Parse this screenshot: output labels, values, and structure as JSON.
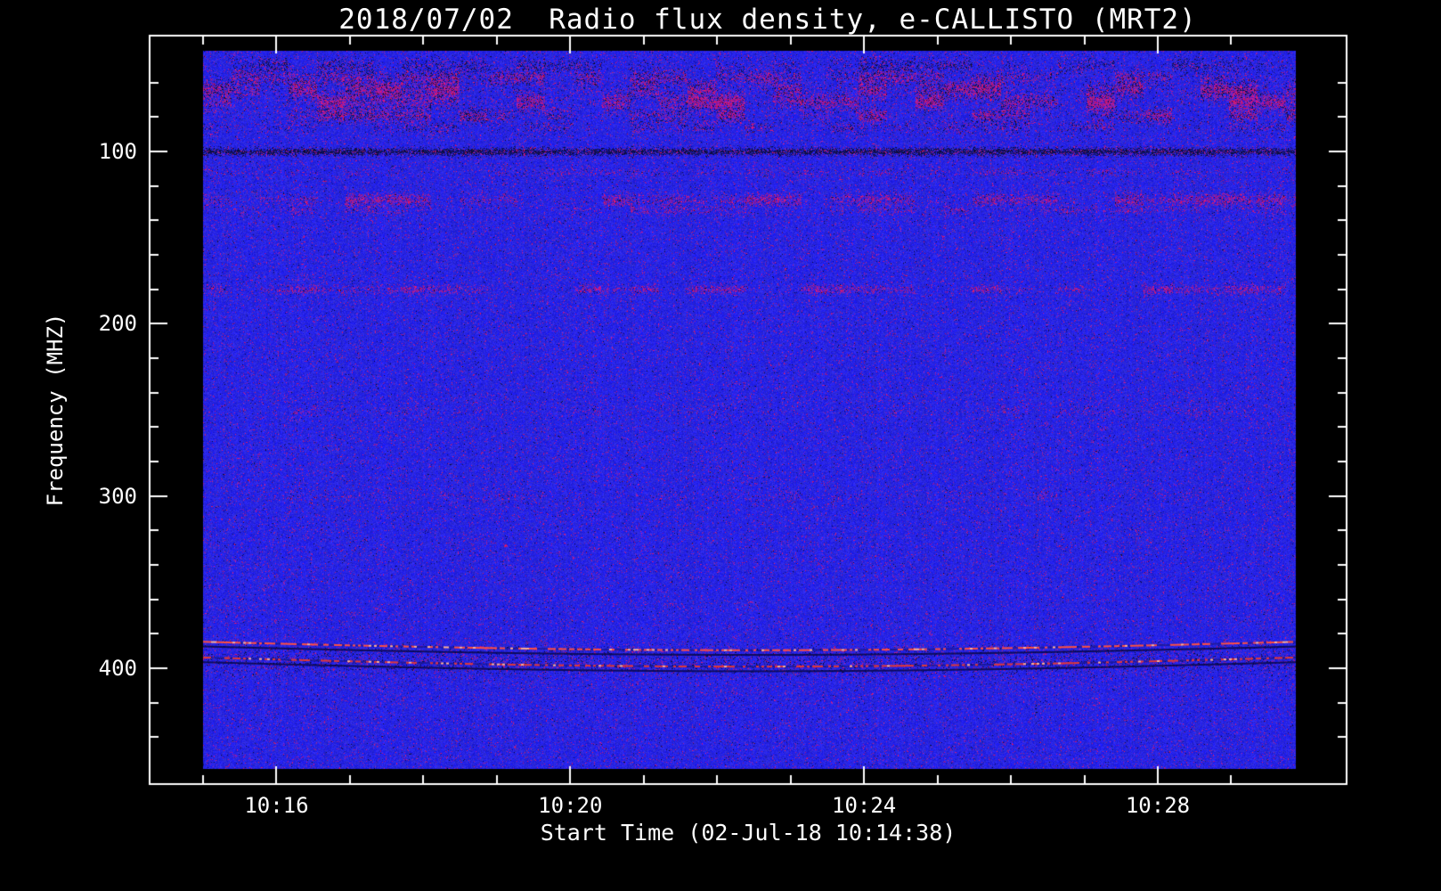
{
  "page": {
    "background_color": "#000000",
    "text_color": "#ffffff"
  },
  "chart_data": {
    "type": "heatmap",
    "title": "2018/07/02  Radio flux density, e-CALLISTO (MRT2)",
    "xlabel": "Start Time (02-Jul-18 10:14:38)",
    "ylabel": "Frequency (MHZ)",
    "date": "2018/07/02",
    "instrument": "e-CALLISTO (MRT2)",
    "start_time": "10:14:38",
    "x_tick_labels": [
      "10:16",
      "10:20",
      "10:24",
      "10:28"
    ],
    "x_major_minutes": [
      16,
      20,
      24,
      28
    ],
    "x_minor_step_minutes": 1,
    "x_range_minutes": [
      15.0,
      29.88
    ],
    "y_tick_labels": [
      "100",
      "200",
      "300",
      "400"
    ],
    "y_major_mhz": [
      100,
      200,
      300,
      400
    ],
    "y_minor_step_mhz": 20,
    "y_range_mhz": [
      41.6,
      458.4
    ],
    "grid": false,
    "legend": false,
    "colormap": {
      "background_blue": "#2222d2",
      "speckle_red": "#cc2430",
      "dark": "#000010",
      "bright_highlight": "#ffb090",
      "frame": "#ffffff"
    },
    "base_red_probability": 0.05,
    "interference_bands": [
      {
        "freq_mhz": 50,
        "width_mhz": 2.5,
        "red": 0.1,
        "dark": 0.3,
        "patchy": true
      },
      {
        "freq_mhz": 57,
        "width_mhz": 2.5,
        "red": 0.3,
        "dark": 0.25,
        "patchy": true
      },
      {
        "freq_mhz": 64,
        "width_mhz": 3.0,
        "red": 0.55,
        "dark": 0.45,
        "patchy": true
      },
      {
        "freq_mhz": 71,
        "width_mhz": 3.0,
        "red": 0.65,
        "dark": 0.35,
        "patchy": true
      },
      {
        "freq_mhz": 79,
        "width_mhz": 2.5,
        "red": 0.35,
        "dark": 0.3,
        "patchy": true
      },
      {
        "freq_mhz": 86,
        "width_mhz": 2.0,
        "red": 0.15,
        "dark": 0.15,
        "patchy": true
      },
      {
        "freq_mhz": 100,
        "width_mhz": 1.3,
        "red": 0.08,
        "dark": 0.85,
        "patchy": false
      },
      {
        "freq_mhz": 112,
        "width_mhz": 1.5,
        "red": 0.15,
        "dark": 0.05,
        "patchy": true
      },
      {
        "freq_mhz": 128,
        "width_mhz": 2.2,
        "red": 0.45,
        "dark": 0.1,
        "patchy": true
      },
      {
        "freq_mhz": 134,
        "width_mhz": 1.5,
        "red": 0.25,
        "dark": 0.05,
        "patchy": true
      },
      {
        "freq_mhz": 180,
        "width_mhz": 1.6,
        "red": 0.4,
        "dark": 0.05,
        "patchy": true
      },
      {
        "freq_mhz": 250,
        "width_mhz": 2.0,
        "red": 0.1,
        "dark": 0.02,
        "patchy": true
      },
      {
        "freq_mhz": 300,
        "width_mhz": 2.0,
        "red": 0.08,
        "dark": 0.02,
        "patchy": true
      },
      {
        "freq_mhz": 396,
        "width_mhz": 5.0,
        "red": 0.04,
        "dark": 0.1,
        "patchy": false
      }
    ],
    "drift_lines": [
      {
        "freq_edge_mhz": 383.5,
        "sag_mhz": 6.0,
        "density": 0.65,
        "color": "#ff5040",
        "dark_offset_mhz": 2.2
      },
      {
        "freq_edge_mhz": 392.5,
        "sag_mhz": 6.5,
        "density": 0.5,
        "color": "#e03838",
        "dark_offset_mhz": 2.2
      }
    ]
  }
}
